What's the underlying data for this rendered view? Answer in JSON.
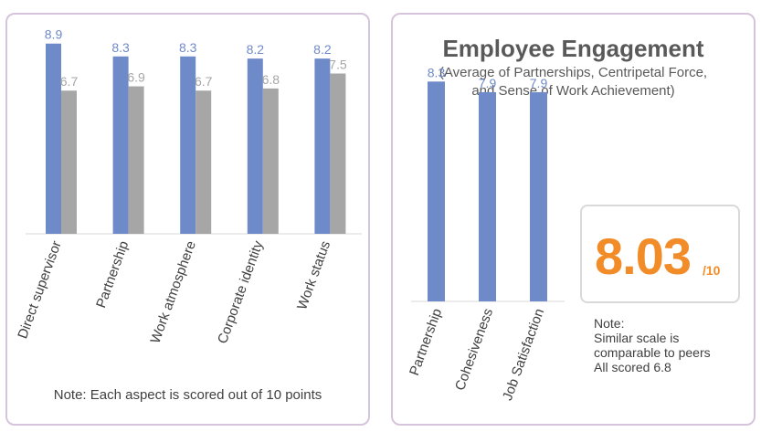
{
  "colors": {
    "primary": "#6f8ac9",
    "secondary": "#a6a6a6",
    "accent": "#f28c28"
  },
  "chart_data": [
    {
      "type": "bar",
      "categories": [
        "Direct supervisor",
        "Partnership",
        "Work atmosphere",
        "Corporate identity",
        "Work status"
      ],
      "series": [
        {
          "values": [
            8.9,
            8.3,
            8.3,
            8.2,
            8.2
          ],
          "labels": [
            "8.9",
            "8.3",
            "8.3",
            "8.2",
            "8.2"
          ]
        },
        {
          "values": [
            6.7,
            6.9,
            6.7,
            6.8,
            7.5
          ],
          "labels": [
            "6.7",
            "6.9",
            "6.7",
            "6.8",
            "7.5"
          ]
        }
      ],
      "ylim": [
        0,
        10
      ],
      "grid": false,
      "note": "Note: Each aspect is scored out of 10 points"
    },
    {
      "type": "bar",
      "title": "Employee Engagement",
      "subtitle_line1": "(Average of Partnerships, Centripetal Force,",
      "subtitle_line2": "and Sense of Work Achievement)",
      "categories": [
        "Partnership",
        "Cohesiveness",
        "Job Satisfaction"
      ],
      "values": [
        8.3,
        7.9,
        7.9
      ],
      "labels": [
        "8.3",
        "7.9",
        "7.9"
      ],
      "ylim": [
        0,
        10
      ],
      "grid": false
    }
  ],
  "score": {
    "value": "8.03",
    "denominator": "/10"
  },
  "note_right": {
    "line1": "Note:",
    "line2": "Similar scale is",
    "line3": "comparable to peers",
    "line4": "All scored 6.8"
  }
}
